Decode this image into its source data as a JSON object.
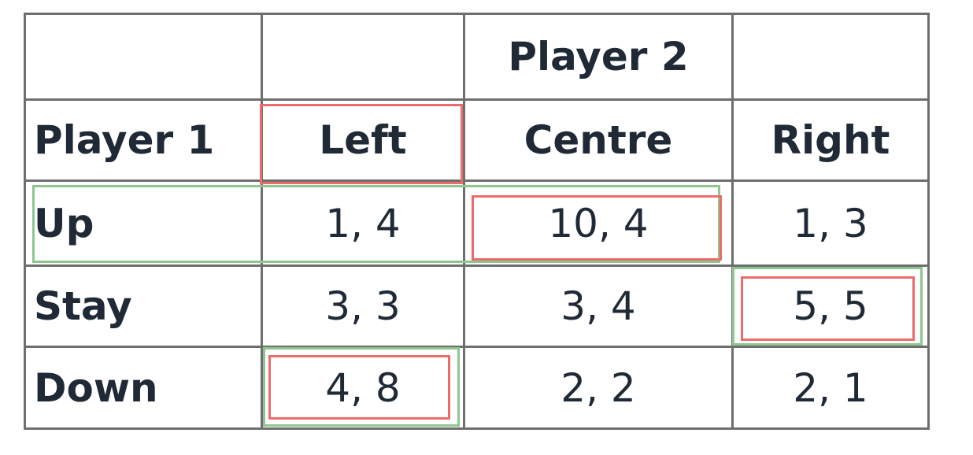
{
  "table": {
    "header_top": {
      "player2_label": "Player 2"
    },
    "header_row": {
      "player1_label": "Player 1",
      "columns": [
        "Left",
        "Centre",
        "Right"
      ]
    },
    "rows": [
      {
        "label": "Up",
        "cells": [
          "1, 4",
          "10, 4",
          "1, 3"
        ]
      },
      {
        "label": "Stay",
        "cells": [
          "3, 3",
          "3, 4",
          "5, 5"
        ]
      },
      {
        "label": "Down",
        "cells": [
          "4, 8",
          "2, 2",
          "2, 1"
        ]
      }
    ]
  },
  "colors": {
    "grid": "#6e6e6e",
    "text": "#1f2a36",
    "highlight_red": "#ee6b6b",
    "highlight_green": "#8fc58f"
  }
}
